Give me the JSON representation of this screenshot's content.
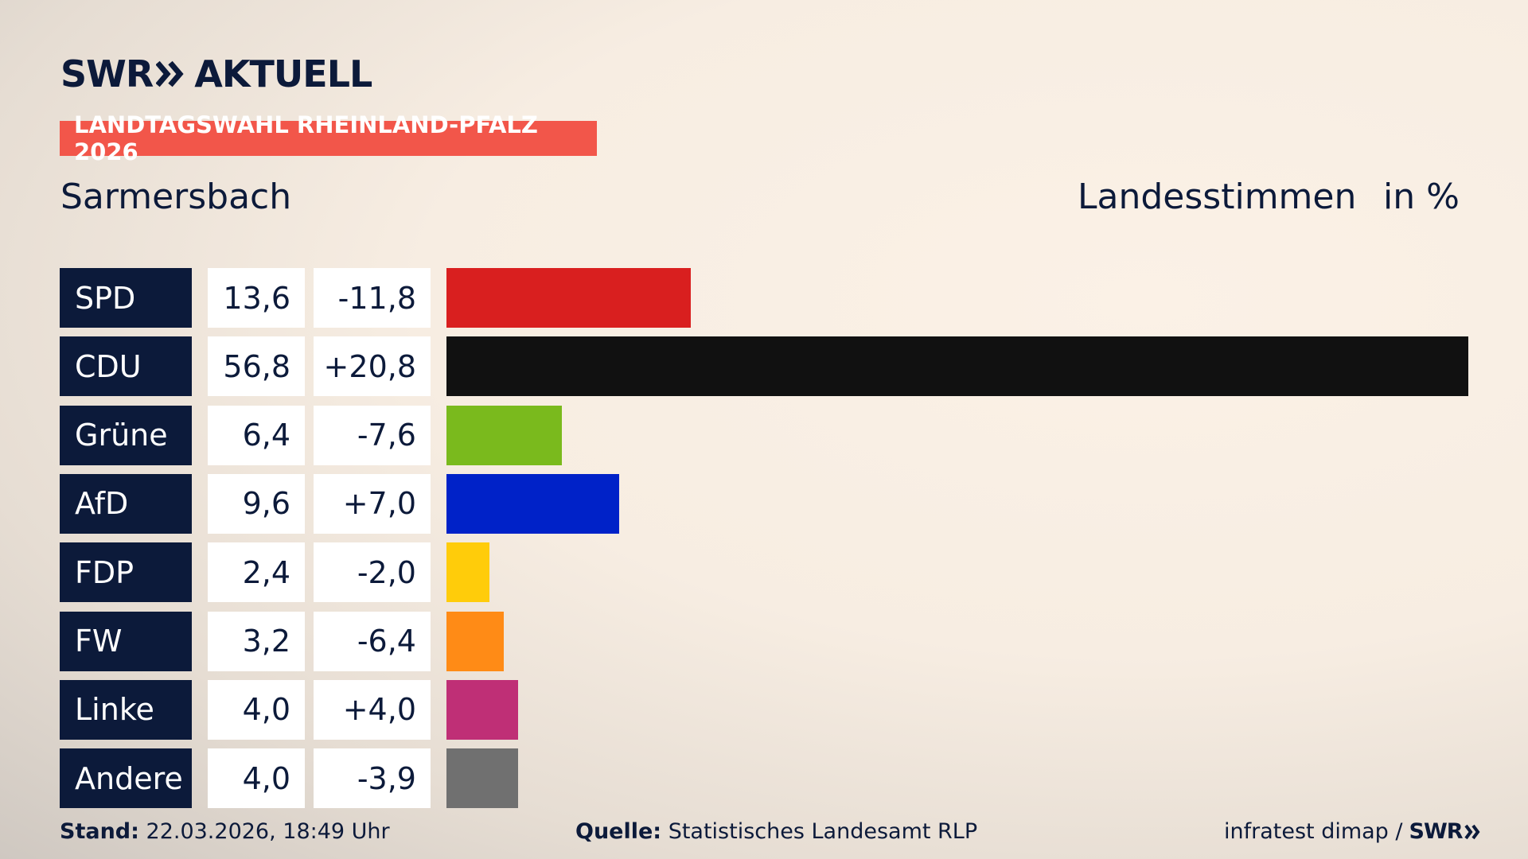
{
  "brand": {
    "logo": "SWR",
    "channel": "AKTUELL"
  },
  "tag": "LANDTAGSWAHL RHEINLAND-PFALZ 2026",
  "chart_data": {
    "type": "bar",
    "subtitle": "Sarmersbach",
    "measure": "Landesstimmen",
    "unit": "in %",
    "categories": [
      "SPD",
      "CDU",
      "Grüne",
      "AfD",
      "FDP",
      "FW",
      "Linke",
      "Andere"
    ],
    "values": [
      13.6,
      56.8,
      6.4,
      9.6,
      2.4,
      3.2,
      4.0,
      4.0
    ],
    "value_labels": [
      "13,6",
      "56,8",
      "6,4",
      "9,6",
      "2,4",
      "3,2",
      "4,0",
      "4,0"
    ],
    "changes": [
      "-11,8",
      "+20,8",
      "-7,6",
      "+7,0",
      "-2,0",
      "-6,4",
      "+4,0",
      "-3,9"
    ],
    "colors": [
      "#d91f1f",
      "#111111",
      "#7aba1d",
      "#0022c8",
      "#ffcc0a",
      "#ff8b16",
      "#bf2f76",
      "#707070"
    ]
  },
  "footer": {
    "stand_label": "Stand:",
    "stand": "22.03.2026, 18:49 Uhr",
    "source_label": "Quelle:",
    "source": "Statistisches Landesamt RLP",
    "credit": "infratest dimap /",
    "credit_logo": "SWR"
  }
}
